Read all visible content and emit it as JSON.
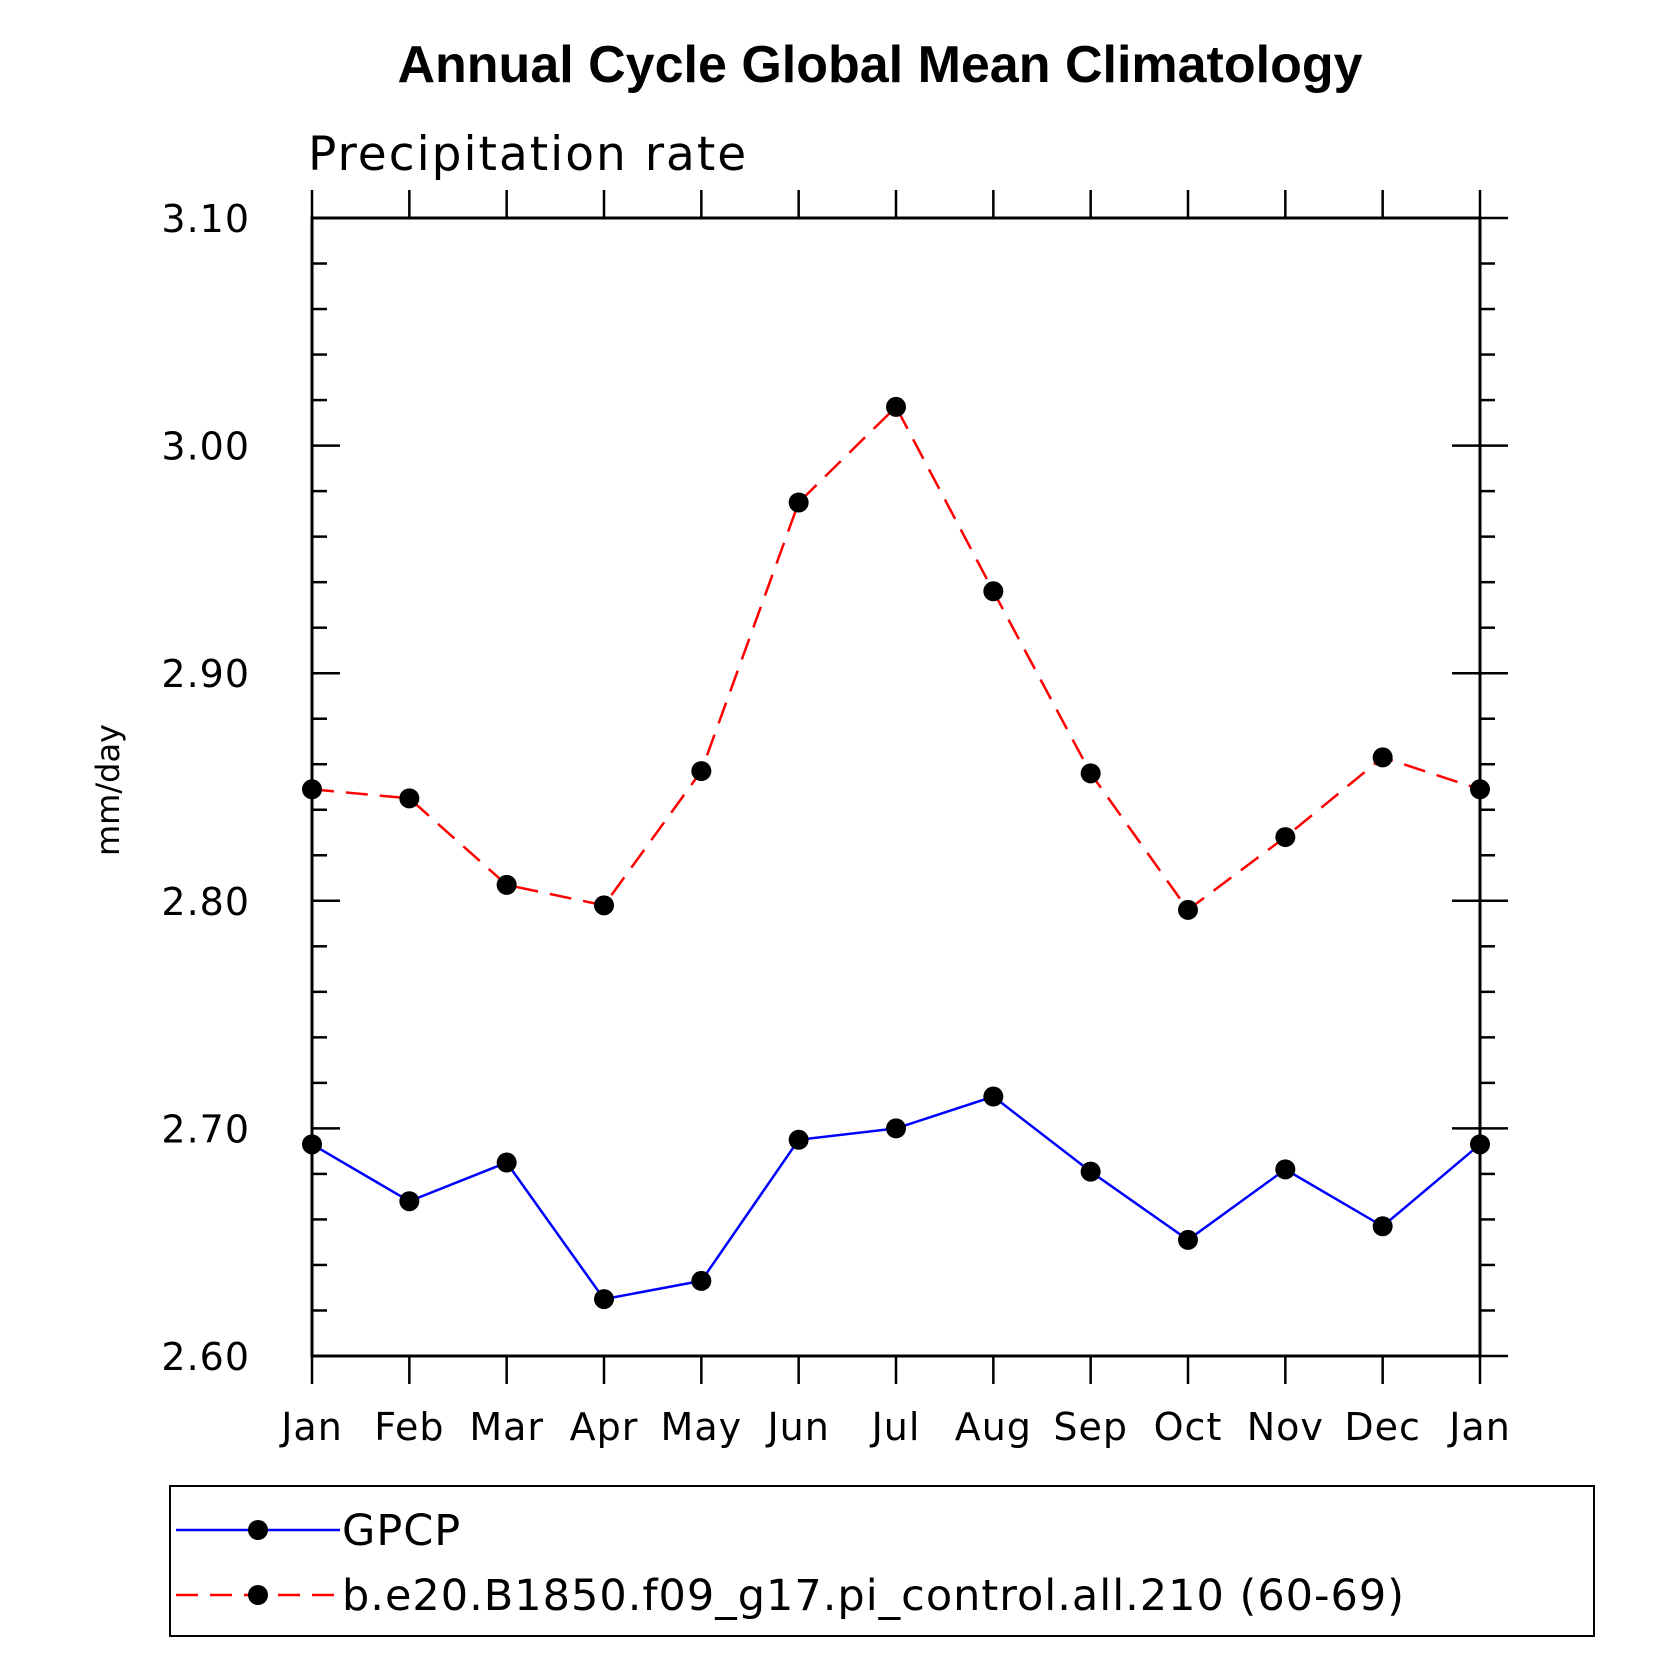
{
  "chart_data": {
    "type": "line",
    "title": "Annual Cycle Global Mean Climatology",
    "subtitle": "Precipitation rate",
    "ylabel": "mm/day",
    "xlabel": "",
    "categories": [
      "Jan",
      "Feb",
      "Mar",
      "Apr",
      "May",
      "Jun",
      "Jul",
      "Aug",
      "Sep",
      "Oct",
      "Nov",
      "Dec",
      "Jan"
    ],
    "ylim": [
      2.6,
      3.1
    ],
    "yticks": [
      2.6,
      2.7,
      2.8,
      2.9,
      3.0,
      3.1
    ],
    "ytick_labels": [
      "2.60",
      "2.70",
      "2.80",
      "2.90",
      "3.00",
      "3.10"
    ],
    "grid": false,
    "legend_position": "bottom",
    "series": [
      {
        "name": "GPCP",
        "color": "#0000ff",
        "style": "solid",
        "values": [
          2.693,
          2.668,
          2.685,
          2.625,
          2.633,
          2.695,
          2.7,
          2.714,
          2.681,
          2.651,
          2.682,
          2.657,
          2.693
        ]
      },
      {
        "name": "b.e20.B1850.f09_g17.pi_control.all.210 (60-69)",
        "color": "#ff0000",
        "style": "dashed",
        "values": [
          2.849,
          2.845,
          2.807,
          2.798,
          2.857,
          2.975,
          3.017,
          2.936,
          2.856,
          2.796,
          2.828,
          2.863,
          2.849
        ]
      }
    ]
  }
}
